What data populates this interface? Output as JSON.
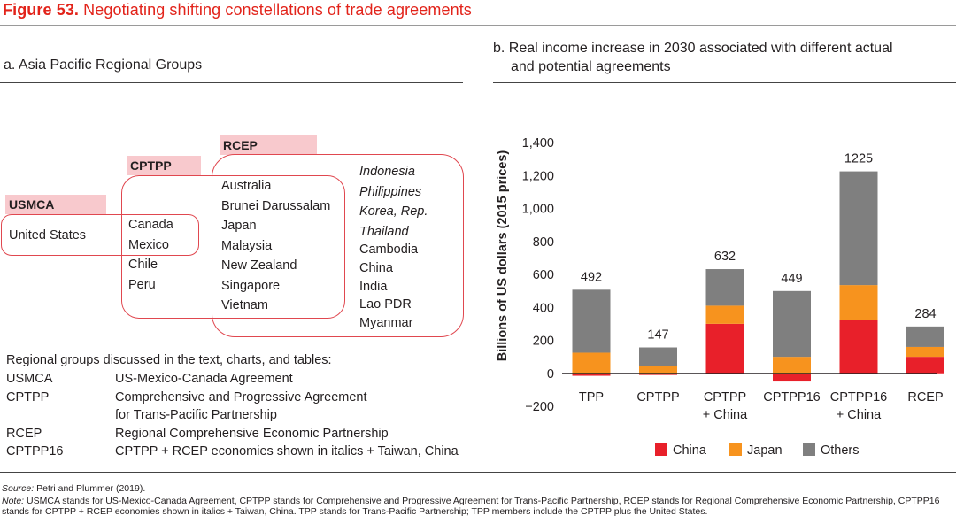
{
  "figure": {
    "number": "Figure 53.",
    "title": "Negotiating shifting constellations of trade agreements"
  },
  "panel_a": {
    "title": "a. Asia Pacific Regional Groups",
    "groups": {
      "usmca": "USMCA",
      "cptpp": "CPTPP",
      "rcep": "RCEP"
    },
    "usmca_only": [
      "United States"
    ],
    "usmca_cptpp": [
      "Canada",
      "Mexico"
    ],
    "cptpp_only": [
      "Chile",
      "Peru"
    ],
    "cptpp_rcep": [
      "Australia",
      "Brunei Darussalam",
      "Japan",
      "Malaysia",
      "New Zealand",
      "Singapore",
      "Vietnam"
    ],
    "rcep_italic": [
      "Indonesia",
      "Philippines",
      "Korea, Rep.",
      "Thailand"
    ],
    "rcep_only": [
      "Cambodia",
      "China",
      "India",
      "Lao PDR",
      "Myanmar"
    ],
    "legend_intro": "Regional groups discussed in the text, charts, and tables:",
    "abbreviations": [
      {
        "key": "USMCA",
        "value": "US-Mexico-Canada Agreement"
      },
      {
        "key": "CPTPP",
        "value": "Comprehensive and Progressive Agreement"
      },
      {
        "key": "",
        "value": "for Trans-Pacific Partnership"
      },
      {
        "key": "RCEP",
        "value": "Regional Comprehensive Economic Partnership"
      },
      {
        "key": "CPTPP16",
        "value": "CPTPP + RCEP economies shown in italics + Taiwan, China"
      }
    ]
  },
  "panel_b": {
    "title_line1": "b. Real income increase in 2030 associated with different actual",
    "title_line2": "and potential agreements"
  },
  "chart_data": {
    "type": "bar",
    "stacked": true,
    "ylabel": "Billions of US dollars (2015 prices)",
    "ylim": [
      -200,
      1400
    ],
    "yticks": [
      -200,
      0,
      200,
      400,
      600,
      800,
      1000,
      1200,
      1400
    ],
    "ytick_labels": [
      "−200",
      "0",
      "200",
      "400",
      "600",
      "800",
      "1,000",
      "1,200",
      "1,400"
    ],
    "categories": [
      [
        "TPP"
      ],
      [
        "CPTPP"
      ],
      [
        "CPTPP",
        "+ China"
      ],
      [
        "CPTPP16"
      ],
      [
        "CPTPP16",
        "+ China"
      ],
      [
        "RCEP"
      ]
    ],
    "series": [
      {
        "name": "China",
        "color": "#e8202a",
        "values": [
          -15,
          -10,
          300,
          -50,
          325,
          100
        ]
      },
      {
        "name": "Japan",
        "color": "#f7931e",
        "values": [
          125,
          45,
          110,
          100,
          210,
          60
        ]
      },
      {
        "name": "Others",
        "color": "#7f7f7f",
        "values": [
          382,
          112,
          222,
          399,
          690,
          124
        ]
      }
    ],
    "totals": [
      492,
      147,
      632,
      449,
      1225,
      284
    ],
    "legend_position": "bottom"
  },
  "footer": {
    "source_label": "Source:",
    "source_text": " Petri and Plummer (2019).",
    "note_label": "Note:",
    "note_text": " USMCA stands for US-Mexico-Canada Agreement, CPTPP stands for Comprehensive and Progressive Agreement for Trans-Pacific Partnership, RCEP stands for Regional Comprehensive Economic Partnership, CPTPP16 stands for CPTPP + RCEP economies shown in italics + Taiwan, China. TPP stands for Trans-Pacific Partnership; TPP members include the CPTPP plus the United States."
  }
}
